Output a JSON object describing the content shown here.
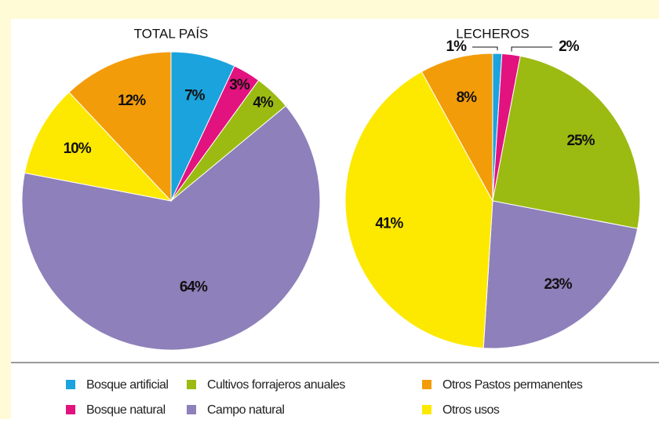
{
  "chart_data": [
    {
      "type": "pie",
      "title": "TOTAL PAÍS",
      "categories": [
        "Bosque artificial",
        "Bosque natural",
        "Cultivos forrajeros anuales",
        "Campo natural",
        "Otros usos",
        "Otros Pastos permanentes"
      ],
      "values": [
        7,
        3,
        4,
        64,
        10,
        12
      ],
      "value_labels": [
        "7%",
        "3%",
        "4%",
        "64%",
        "10%",
        "12%"
      ],
      "colors": [
        "#1ba3de",
        "#e2127f",
        "#9bbb12",
        "#8e80ba",
        "#fde800",
        "#f39c0a"
      ]
    },
    {
      "type": "pie",
      "title": "LECHEROS",
      "categories": [
        "Bosque artificial",
        "Bosque natural",
        "Cultivos forrajeros anuales",
        "Campo natural",
        "Otros usos",
        "Otros Pastos permanentes"
      ],
      "values": [
        1,
        2,
        25,
        23,
        41,
        8
      ],
      "value_labels": [
        "1%",
        "2%",
        "25%",
        "23%",
        "41%",
        "8%"
      ],
      "colors": [
        "#1ba3de",
        "#e2127f",
        "#9bbb12",
        "#8e80ba",
        "#fde800",
        "#f39c0a"
      ]
    }
  ]
}
